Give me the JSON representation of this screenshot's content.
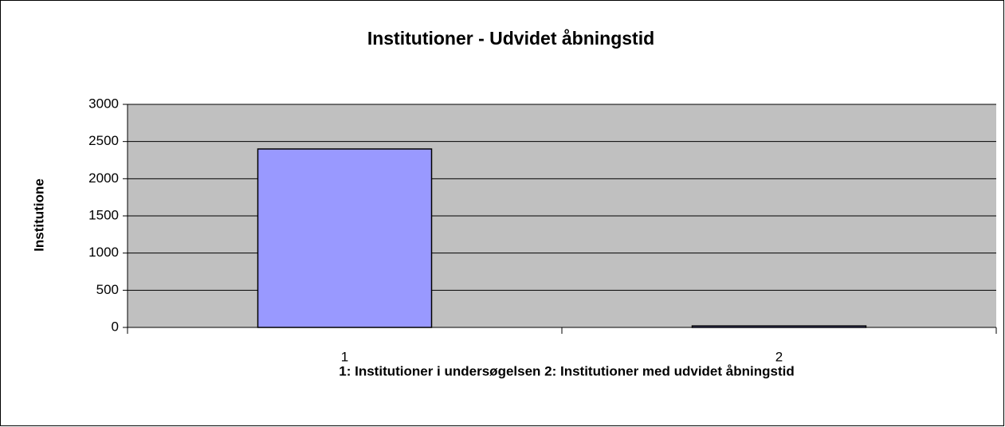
{
  "chart_data": {
    "type": "bar",
    "title": "Institutioner - Udvidet åbningstid",
    "y_label": "Institutione",
    "x_label": "1: Institutioner i undersøgelsen  2: Institutioner med udvidet åbningstid",
    "categories": [
      "1",
      "2"
    ],
    "values": [
      2400,
      20
    ],
    "color": "#9999ff",
    "plot_background": "#c0c0c0",
    "ylim": [
      0,
      3000
    ],
    "yticks": [
      0,
      500,
      1000,
      1500,
      2000,
      2500,
      3000
    ],
    "grid": true
  }
}
